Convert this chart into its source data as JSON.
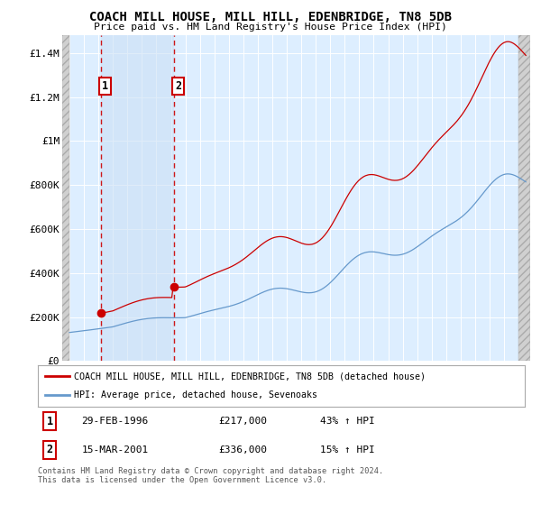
{
  "title": "COACH MILL HOUSE, MILL HILL, EDENBRIDGE, TN8 5DB",
  "subtitle": "Price paid vs. HM Land Registry's House Price Index (HPI)",
  "ylabel_ticks": [
    "£0",
    "£200K",
    "£400K",
    "£600K",
    "£800K",
    "£1M",
    "£1.2M",
    "£1.4M"
  ],
  "ylabel_values": [
    0,
    200000,
    400000,
    600000,
    800000,
    1000000,
    1200000,
    1400000
  ],
  "ylim": [
    0,
    1480000
  ],
  "xlim_start": 1993.5,
  "xlim_end": 2025.8,
  "sale1_date": 1996.16,
  "sale1_price": 217000,
  "sale1_label": "1",
  "sale2_date": 2001.21,
  "sale2_price": 336000,
  "sale2_label": "2",
  "legend_line1": "COACH MILL HOUSE, MILL HILL, EDENBRIDGE, TN8 5DB (detached house)",
  "legend_line2": "HPI: Average price, detached house, Sevenoaks",
  "footer": "Contains HM Land Registry data © Crown copyright and database right 2024.\nThis data is licensed under the Open Government Licence v3.0.",
  "line_color_red": "#cc0000",
  "line_color_blue": "#6699cc",
  "grid_color": "#cccccc",
  "background_color": "#ffffff",
  "plot_bg_color": "#ddeeff",
  "hatch_band_color": "#e8e8e8",
  "sale_band_color": "#cce0f5"
}
